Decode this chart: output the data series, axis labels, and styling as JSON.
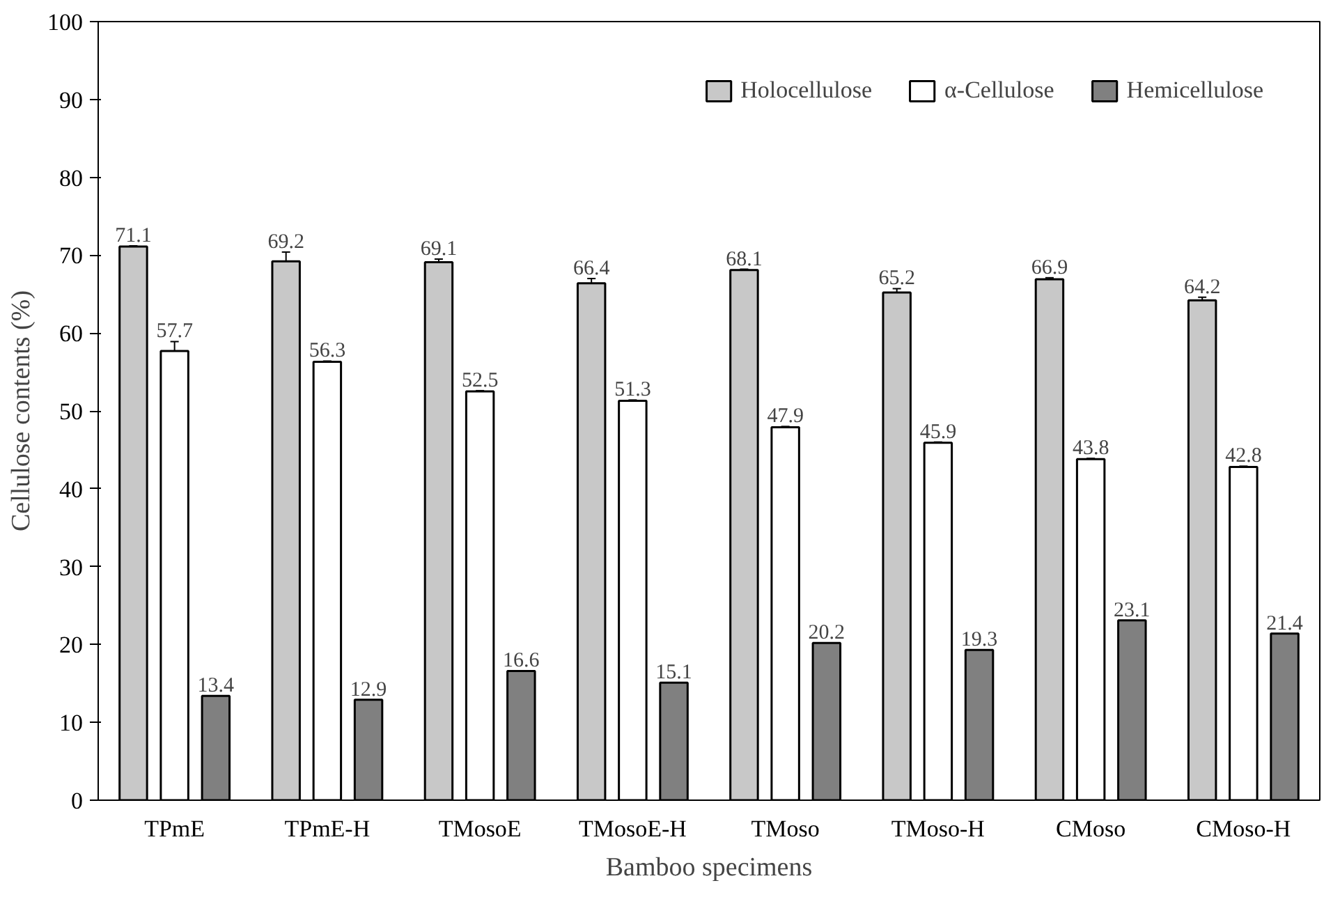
{
  "chart_data": {
    "type": "bar",
    "xlabel": "Bamboo specimens",
    "ylabel": "Cellulose contents (%)",
    "categories": [
      "TPmE",
      "TPmE-H",
      "TMosoE",
      "TMosoE-H",
      "TMoso",
      "TMoso-H",
      "CMoso",
      "CMoso-H"
    ],
    "series": [
      {
        "name": "Holocellulose",
        "color": "#c8c8c8",
        "values": [
          71.1,
          69.2,
          69.1,
          66.4,
          68.1,
          65.2,
          66.9,
          64.2
        ],
        "errors": [
          0.1,
          1.2,
          0.4,
          0.6,
          0.1,
          0.5,
          0.2,
          0.4
        ]
      },
      {
        "name": "α-Cellulose",
        "color": "#ffffff",
        "values": [
          57.7,
          56.3,
          52.5,
          51.3,
          47.9,
          45.9,
          43.8,
          42.8
        ],
        "errors": [
          1.2,
          0.1,
          0.1,
          0.1,
          0.1,
          0.1,
          0.1,
          0.1
        ]
      },
      {
        "name": "Hemicellulose",
        "color": "#808080",
        "values": [
          13.4,
          12.9,
          16.6,
          15.1,
          20.2,
          19.3,
          23.1,
          21.4
        ]
      }
    ],
    "ylim": [
      0,
      100
    ],
    "yticks": [
      0,
      10,
      20,
      30,
      40,
      50,
      60,
      70,
      80,
      90,
      100
    ],
    "grid": false,
    "legend": "top right",
    "data_labels": true
  }
}
